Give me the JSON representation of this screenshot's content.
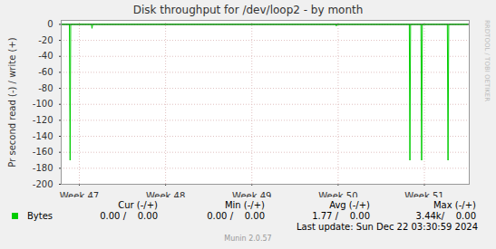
{
  "chart_data": {
    "type": "line",
    "title": "Disk throughput for /dev/loop2 - by month",
    "y_label": "Pr second read (-) / write (+)",
    "x": [
      46.79,
      46.885,
      46.893,
      46.9,
      47.14,
      47.147,
      47.155,
      49.97,
      49.979,
      49.99,
      50.825,
      50.832,
      50.84,
      50.96,
      50.968,
      50.976,
      51.266,
      51.274,
      51.282,
      51.5
    ],
    "series": [
      {
        "name": "Bytes",
        "color": "#00cc00",
        "values": [
          0,
          0,
          -170,
          0,
          0,
          -5,
          0,
          0,
          -2,
          0,
          0,
          -170,
          0,
          0,
          -170,
          0,
          0,
          -170,
          0,
          0
        ]
      }
    ],
    "xlim": [
      46.79,
      51.52
    ],
    "xticks": [
      {
        "value": 47,
        "label": "Week 47"
      },
      {
        "value": 48,
        "label": "Week 48"
      },
      {
        "value": 49,
        "label": "Week 49"
      },
      {
        "value": 50,
        "label": "Week 50"
      },
      {
        "value": 51,
        "label": "Week 51"
      }
    ],
    "ylim": [
      -200,
      5
    ],
    "yticks": [
      -200,
      -180,
      -160,
      -140,
      -120,
      -100,
      -80,
      -60,
      -40,
      -20,
      0
    ],
    "grid": true,
    "stats": {
      "headers": [
        "Cur (-/+)",
        "Min (-/+)",
        "Avg (-/+)",
        "Max (-/+)"
      ],
      "values": [
        "0.00 /    0.00",
        "0.00 /    0.00",
        "1.77 /    0.00",
        "3.44k/    0.00"
      ]
    },
    "last_update": "Last update: Sun Dec 22 03:30:59 2024",
    "footer": "Munin 2.0.57",
    "side_text": "RRDTOOL / TOBI OETIKER"
  }
}
